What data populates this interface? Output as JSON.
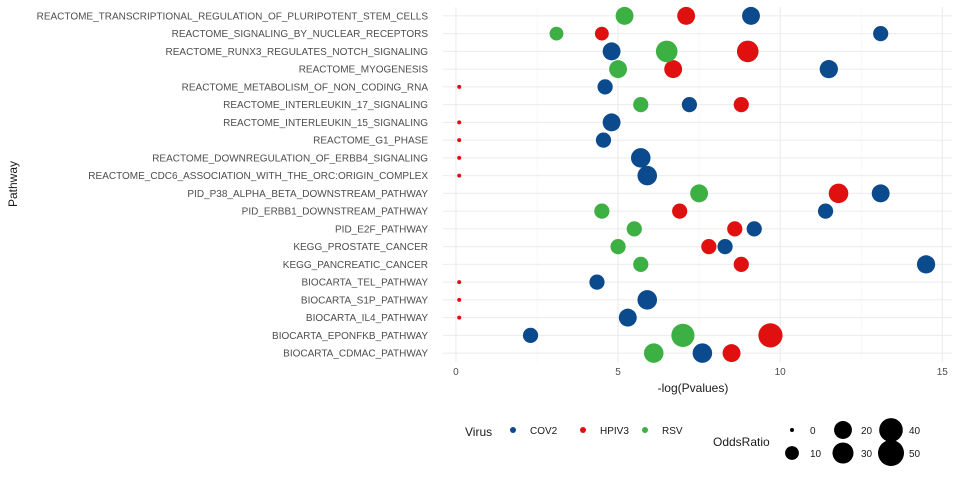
{
  "chart_data": {
    "type": "scatter",
    "xlabel": "-log(Pvalues)",
    "ylabel": "Pathway",
    "xlim": [
      -0.4,
      15.3
    ],
    "xticks": [
      0,
      5,
      10,
      15
    ],
    "grid": true,
    "categories": [
      "REACTOME_TRANSCRIPTIONAL_REGULATION_OF_PLURIPOTENT_STEM_CELLS",
      "REACTOME_SIGNALING_BY_NUCLEAR_RECEPTORS",
      "REACTOME_RUNX3_REGULATES_NOTCH_SIGNALING",
      "REACTOME_MYOGENESIS",
      "REACTOME_METABOLISM_OF_NON_CODING_RNA",
      "REACTOME_INTERLEUKIN_17_SIGNALING",
      "REACTOME_INTERLEUKIN_15_SIGNALING",
      "REACTOME_G1_PHASE",
      "REACTOME_DOWNREGULATION_OF_ERBB4_SIGNALING",
      "REACTOME_CDC6_ASSOCIATION_WITH_THE_ORC:ORIGIN_COMPLEX",
      "PID_P38_ALPHA_BETA_DOWNSTREAM_PATHWAY",
      "PID_ERBB1_DOWNSTREAM_PATHWAY",
      "PID_E2F_PATHWAY",
      "KEGG_PROSTATE_CANCER",
      "KEGG_PANCREATIC_CANCER",
      "BIOCARTA_TEL_PATHWAY",
      "BIOCARTA_S1P_PATHWAY",
      "BIOCARTA_IL4_PATHWAY",
      "BIOCARTA_EPONFKB_PATHWAY",
      "BIOCARTA_CDMAC_PATHWAY"
    ],
    "series": [
      {
        "name": "COV2",
        "color": "#0c4a8e",
        "points": [
          {
            "pathway": "REACTOME_TRANSCRIPTIONAL_REGULATION_OF_PLURIPOTENT_STEM_CELLS",
            "x": 9.1,
            "odds": 20
          },
          {
            "pathway": "REACTOME_SIGNALING_BY_NUCLEAR_RECEPTORS",
            "x": 13.1,
            "odds": 13
          },
          {
            "pathway": "REACTOME_RUNX3_REGULATES_NOTCH_SIGNALING",
            "x": 4.8,
            "odds": 20
          },
          {
            "pathway": "REACTOME_MYOGENESIS",
            "x": 11.5,
            "odds": 21
          },
          {
            "pathway": "REACTOME_METABOLISM_OF_NON_CODING_RNA",
            "x": 4.6,
            "odds": 13
          },
          {
            "pathway": "REACTOME_INTERLEUKIN_17_SIGNALING",
            "x": 7.2,
            "odds": 13
          },
          {
            "pathway": "REACTOME_INTERLEUKIN_15_SIGNALING",
            "x": 4.8,
            "odds": 20
          },
          {
            "pathway": "REACTOME_G1_PHASE",
            "x": 4.55,
            "odds": 13
          },
          {
            "pathway": "REACTOME_DOWNREGULATION_OF_ERBB4_SIGNALING",
            "x": 5.7,
            "odds": 25
          },
          {
            "pathway": "REACTOME_CDC6_ASSOCIATION_WITH_THE_ORC:ORIGIN_COMPLEX",
            "x": 5.9,
            "odds": 25
          },
          {
            "pathway": "PID_P38_ALPHA_BETA_DOWNSTREAM_PATHWAY",
            "x": 13.1,
            "odds": 20
          },
          {
            "pathway": "PID_ERBB1_DOWNSTREAM_PATHWAY",
            "x": 11.4,
            "odds": 13
          },
          {
            "pathway": "PID_E2F_PATHWAY",
            "x": 9.2,
            "odds": 13
          },
          {
            "pathway": "KEGG_PROSTATE_CANCER",
            "x": 8.3,
            "odds": 13
          },
          {
            "pathway": "KEGG_PANCREATIC_CANCER",
            "x": 14.5,
            "odds": 21
          },
          {
            "pathway": "BIOCARTA_TEL_PATHWAY",
            "x": 4.35,
            "odds": 13
          },
          {
            "pathway": "BIOCARTA_S1P_PATHWAY",
            "x": 5.9,
            "odds": 25
          },
          {
            "pathway": "BIOCARTA_IL4_PATHWAY",
            "x": 5.3,
            "odds": 20
          },
          {
            "pathway": "BIOCARTA_EPONFKB_PATHWAY",
            "x": 2.3,
            "odds": 13
          },
          {
            "pathway": "BIOCARTA_CDMAC_PATHWAY",
            "x": 7.6,
            "odds": 25
          }
        ]
      },
      {
        "name": "HPIV3",
        "color": "#e01010",
        "points": [
          {
            "pathway": "REACTOME_TRANSCRIPTIONAL_REGULATION_OF_PLURIPOTENT_STEM_CELLS",
            "x": 7.1,
            "odds": 20
          },
          {
            "pathway": "REACTOME_SIGNALING_BY_NUCLEAR_RECEPTORS",
            "x": 4.5,
            "odds": 10
          },
          {
            "pathway": "REACTOME_RUNX3_REGULATES_NOTCH_SIGNALING",
            "x": 9.0,
            "odds": 32
          },
          {
            "pathway": "REACTOME_MYOGENESIS",
            "x": 6.7,
            "odds": 20
          },
          {
            "pathway": "REACTOME_METABOLISM_OF_NON_CODING_RNA",
            "x": 0.1,
            "odds": 0
          },
          {
            "pathway": "REACTOME_INTERLEUKIN_17_SIGNALING",
            "x": 8.8,
            "odds": 13
          },
          {
            "pathway": "REACTOME_INTERLEUKIN_15_SIGNALING",
            "x": 0.1,
            "odds": 0
          },
          {
            "pathway": "REACTOME_G1_PHASE",
            "x": 0.1,
            "odds": 0
          },
          {
            "pathway": "REACTOME_DOWNREGULATION_OF_ERBB4_SIGNALING",
            "x": 0.1,
            "odds": 0
          },
          {
            "pathway": "REACTOME_CDC6_ASSOCIATION_WITH_THE_ORC:ORIGIN_COMPLEX",
            "x": 0.1,
            "odds": 0
          },
          {
            "pathway": "PID_P38_ALPHA_BETA_DOWNSTREAM_PATHWAY",
            "x": 11.8,
            "odds": 25
          },
          {
            "pathway": "PID_ERBB1_DOWNSTREAM_PATHWAY",
            "x": 6.9,
            "odds": 13
          },
          {
            "pathway": "PID_E2F_PATHWAY",
            "x": 8.6,
            "odds": 13
          },
          {
            "pathway": "KEGG_PROSTATE_CANCER",
            "x": 7.8,
            "odds": 13
          },
          {
            "pathway": "KEGG_PANCREATIC_CANCER",
            "x": 8.8,
            "odds": 13
          },
          {
            "pathway": "BIOCARTA_TEL_PATHWAY",
            "x": 0.1,
            "odds": 0
          },
          {
            "pathway": "BIOCARTA_S1P_PATHWAY",
            "x": 0.1,
            "odds": 0
          },
          {
            "pathway": "BIOCARTA_IL4_PATHWAY",
            "x": 0.1,
            "odds": 0
          },
          {
            "pathway": "BIOCARTA_EPONFKB_PATHWAY",
            "x": 9.7,
            "odds": 42
          },
          {
            "pathway": "BIOCARTA_CDMAC_PATHWAY",
            "x": 8.5,
            "odds": 20
          }
        ]
      },
      {
        "name": "RSV",
        "color": "#3cb043",
        "points": [
          {
            "pathway": "REACTOME_TRANSCRIPTIONAL_REGULATION_OF_PLURIPOTENT_STEM_CELLS",
            "x": 5.2,
            "odds": 20
          },
          {
            "pathway": "REACTOME_SIGNALING_BY_NUCLEAR_RECEPTORS",
            "x": 3.1,
            "odds": 10
          },
          {
            "pathway": "REACTOME_RUNX3_REGULATES_NOTCH_SIGNALING",
            "x": 6.5,
            "odds": 32
          },
          {
            "pathway": "REACTOME_MYOGENESIS",
            "x": 5.0,
            "odds": 20
          },
          {
            "pathway": "REACTOME_INTERLEUKIN_17_SIGNALING",
            "x": 5.7,
            "odds": 13
          },
          {
            "pathway": "PID_P38_ALPHA_BETA_DOWNSTREAM_PATHWAY",
            "x": 7.5,
            "odds": 20
          },
          {
            "pathway": "PID_ERBB1_DOWNSTREAM_PATHWAY",
            "x": 4.5,
            "odds": 13
          },
          {
            "pathway": "PID_E2F_PATHWAY",
            "x": 5.5,
            "odds": 13
          },
          {
            "pathway": "KEGG_PROSTATE_CANCER",
            "x": 5.0,
            "odds": 13
          },
          {
            "pathway": "KEGG_PANCREATIC_CANCER",
            "x": 5.7,
            "odds": 13
          },
          {
            "pathway": "BIOCARTA_EPONFKB_PATHWAY",
            "x": 7.0,
            "odds": 38
          },
          {
            "pathway": "BIOCARTA_CDMAC_PATHWAY",
            "x": 6.1,
            "odds": 25
          }
        ]
      }
    ],
    "legend": {
      "position": "bottom",
      "color_title": "Virus",
      "size_title": "OddsRatio",
      "size_values": [
        0,
        10,
        20,
        30,
        40,
        50
      ]
    }
  }
}
